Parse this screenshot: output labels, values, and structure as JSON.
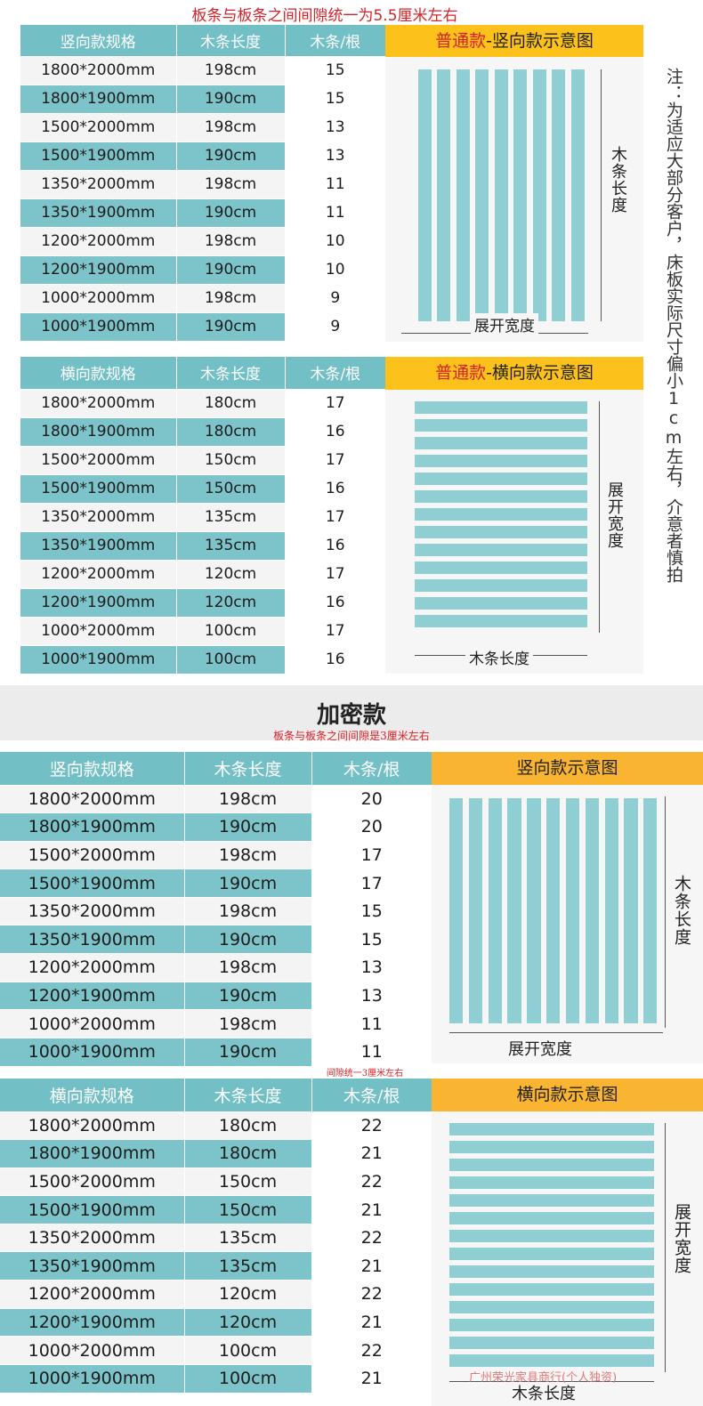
{
  "section1": {
    "top_note": "板条与板条之间间隙统一为5.5厘米左右",
    "vertical": {
      "headers": [
        "竖向款规格",
        "木条长度",
        "木条/根"
      ],
      "rows": [
        [
          "1800*2000mm",
          "198cm",
          "15"
        ],
        [
          "1800*1900mm",
          "190cm",
          "15"
        ],
        [
          "1500*2000mm",
          "198cm",
          "13"
        ],
        [
          "1500*1900mm",
          "190cm",
          "13"
        ],
        [
          "1350*2000mm",
          "198cm",
          "11"
        ],
        [
          "1350*1900mm",
          "190cm",
          "11"
        ],
        [
          "1200*2000mm",
          "198cm",
          "10"
        ],
        [
          "1200*1900mm",
          "190cm",
          "10"
        ],
        [
          "1000*2000mm",
          "198cm",
          "9"
        ],
        [
          "1000*1900mm",
          "190cm",
          "9"
        ]
      ],
      "diagram": {
        "title_red": "普通款",
        "title_rest": "-竖向款示意图",
        "side_label": "木条长度",
        "bottom_label": "展开宽度",
        "slat_count": 9
      }
    },
    "horizontal": {
      "headers": [
        "横向款规格",
        "木条长度",
        "木条/根"
      ],
      "rows": [
        [
          "1800*2000mm",
          "180cm",
          "17"
        ],
        [
          "1800*1900mm",
          "180cm",
          "16"
        ],
        [
          "1500*2000mm",
          "150cm",
          "17"
        ],
        [
          "1500*1900mm",
          "150cm",
          "16"
        ],
        [
          "1350*2000mm",
          "135cm",
          "17"
        ],
        [
          "1350*1900mm",
          "135cm",
          "16"
        ],
        [
          "1200*2000mm",
          "120cm",
          "17"
        ],
        [
          "1200*1900mm",
          "120cm",
          "16"
        ],
        [
          "1000*2000mm",
          "100cm",
          "17"
        ],
        [
          "1000*1900mm",
          "100cm",
          "16"
        ]
      ],
      "diagram": {
        "title_red": "普通款",
        "title_rest": "-横向款示意图",
        "side_label": "展开宽度",
        "bottom_label": "木条长度",
        "slat_count": 13
      }
    },
    "side_note": "注：为适应大部分客户，床板实际尺寸偏小1cm左右，介意者慎拍"
  },
  "section2": {
    "title": "加密款",
    "subtitle": "板条与板条之间间隙是3厘米左右",
    "vertical": {
      "headers": [
        "竖向款规格",
        "木条长度",
        "木条/根"
      ],
      "rows": [
        [
          "1800*2000mm",
          "198cm",
          "20"
        ],
        [
          "1800*1900mm",
          "190cm",
          "20"
        ],
        [
          "1500*2000mm",
          "198cm",
          "17"
        ],
        [
          "1500*1900mm",
          "190cm",
          "17"
        ],
        [
          "1350*2000mm",
          "198cm",
          "15"
        ],
        [
          "1350*1900mm",
          "190cm",
          "15"
        ],
        [
          "1200*2000mm",
          "198cm",
          "13"
        ],
        [
          "1200*1900mm",
          "190cm",
          "13"
        ],
        [
          "1000*2000mm",
          "198cm",
          "11"
        ],
        [
          "1000*1900mm",
          "190cm",
          "11"
        ]
      ],
      "diagram": {
        "title_red": "",
        "title_rest": "竖向款示意图",
        "side_label": "木条长度",
        "bottom_label": "展开宽度",
        "slat_count": 11
      }
    },
    "gap_note": "间隙统一3厘米左右",
    "horizontal": {
      "headers": [
        "横向款规格",
        "木条长度",
        "木条/根"
      ],
      "rows": [
        [
          "1800*2000mm",
          "180cm",
          "22"
        ],
        [
          "1800*1900mm",
          "180cm",
          "21"
        ],
        [
          "1500*2000mm",
          "150cm",
          "22"
        ],
        [
          "1500*1900mm",
          "150cm",
          "21"
        ],
        [
          "1350*2000mm",
          "135cm",
          "22"
        ],
        [
          "1350*1900mm",
          "135cm",
          "21"
        ],
        [
          "1200*2000mm",
          "120cm",
          "22"
        ],
        [
          "1200*1900mm",
          "120cm",
          "21"
        ],
        [
          "1000*2000mm",
          "100cm",
          "22"
        ],
        [
          "1000*1900mm",
          "100cm",
          "21"
        ]
      ],
      "diagram": {
        "title_red": "",
        "title_rest": "横向款示意图",
        "side_label": "展开宽度",
        "bottom_label": "木条长度",
        "slat_count": 14
      }
    },
    "watermark": "广州荣光家具商行(个人独资)"
  },
  "colors": {
    "teal": "#72bfc6",
    "teal_row": "#7cc4ca",
    "slat": "#8fcfd3",
    "yellow": "#fcc21b",
    "red": "#d4232a"
  }
}
